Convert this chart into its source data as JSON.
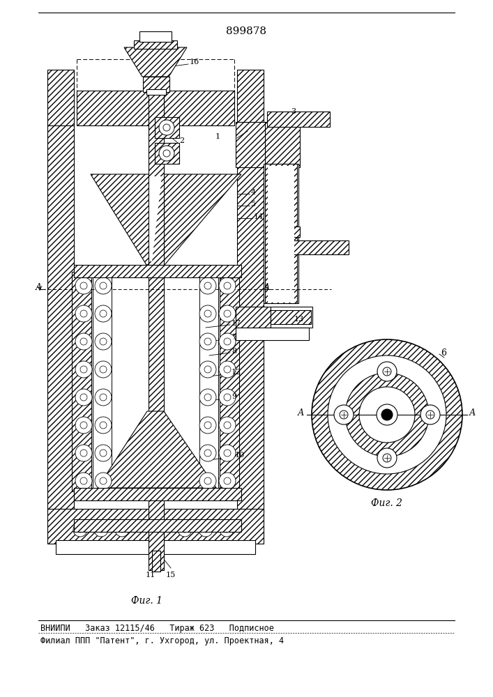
{
  "patent_number": "899878",
  "fig1_caption": "Фиг. 1",
  "fig2_caption": "Фиг. 2",
  "footer_line1": "ВНИИПИ   Заказ 12115/46   Тираж 623   Подписное",
  "footer_line2": "Филиал ППП \"Патент\", г. Ухгород, ул. Проектная, 4",
  "bg_color": "#ffffff",
  "line_color": "#000000",
  "fig_width": 7.07,
  "fig_height": 10.0
}
